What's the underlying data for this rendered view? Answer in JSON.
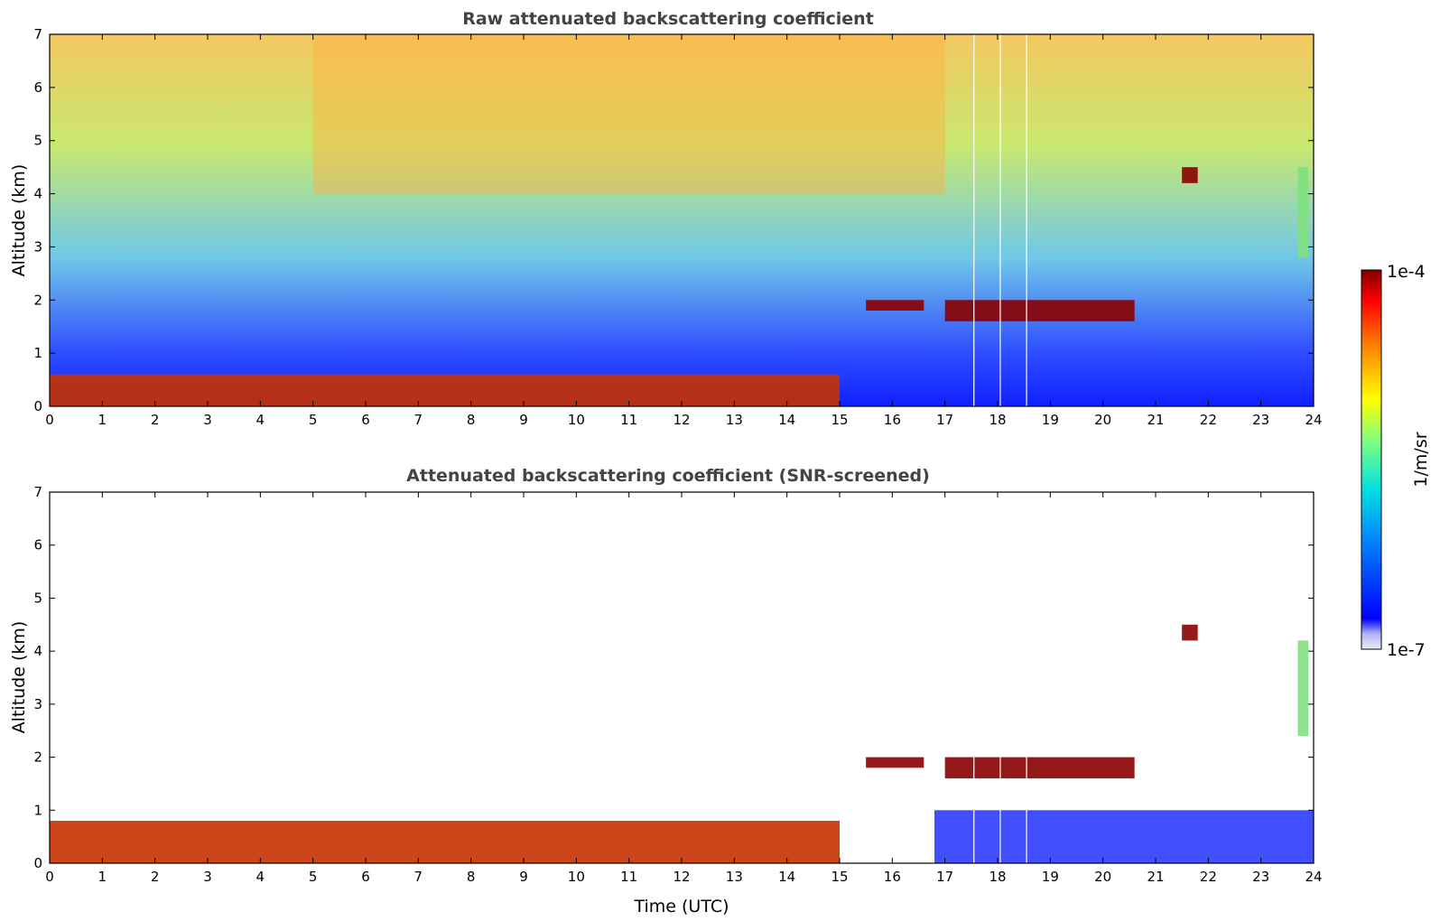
{
  "chart_data": [
    {
      "type": "heatmap",
      "title": "Raw attenuated backscattering coefficient",
      "xlabel": "",
      "ylabel": "Altitude (km)",
      "xlim": [
        0,
        24
      ],
      "ylim": [
        0,
        7
      ],
      "x_ticks": [
        "0",
        "1",
        "2",
        "3",
        "4",
        "5",
        "6",
        "7",
        "8",
        "9",
        "10",
        "11",
        "12",
        "13",
        "14",
        "15",
        "16",
        "17",
        "18",
        "19",
        "20",
        "21",
        "22",
        "23",
        "24"
      ],
      "y_ticks": [
        "0",
        "1",
        "2",
        "3",
        "4",
        "5",
        "6",
        "7"
      ],
      "colormap": "jet",
      "color_scale": "log",
      "features": [
        {
          "kind": "boundary-layer",
          "time_start": 0,
          "time_end": 15,
          "altitude_km": [
            0,
            0.6
          ]
        },
        {
          "kind": "cloud",
          "time_start": 15.5,
          "time_end": 16.6,
          "altitude_km": [
            1.8,
            2.0
          ]
        },
        {
          "kind": "cloud",
          "time_start": 17.0,
          "time_end": 20.6,
          "altitude_km": [
            1.6,
            2.0
          ]
        },
        {
          "kind": "cloud",
          "time_start": 21.5,
          "time_end": 21.8,
          "altitude_km": [
            4.2,
            4.5
          ]
        },
        {
          "kind": "elevated-layer",
          "time_start": 23.7,
          "time_end": 23.9,
          "altitude_km": [
            2.8,
            4.5
          ]
        },
        {
          "kind": "noise-high",
          "time_start": 5,
          "time_end": 17,
          "altitude_km": [
            4,
            7
          ]
        }
      ],
      "missing_profiles_hours": [
        17.55,
        18.05,
        18.55
      ]
    },
    {
      "type": "heatmap",
      "title": "Attenuated backscattering coefficient (SNR-screened)",
      "xlabel": "Time (UTC)",
      "ylabel": "Altitude (km)",
      "xlim": [
        0,
        24
      ],
      "ylim": [
        0,
        7
      ],
      "x_ticks": [
        "0",
        "1",
        "2",
        "3",
        "4",
        "5",
        "6",
        "7",
        "8",
        "9",
        "10",
        "11",
        "12",
        "13",
        "14",
        "15",
        "16",
        "17",
        "18",
        "19",
        "20",
        "21",
        "22",
        "23",
        "24"
      ],
      "y_ticks": [
        "0",
        "1",
        "2",
        "3",
        "4",
        "5",
        "6",
        "7"
      ],
      "colormap": "jet",
      "color_scale": "log",
      "features": [
        {
          "kind": "boundary-layer",
          "time_start": 0,
          "time_end": 15,
          "altitude_km": [
            0,
            0.8
          ]
        },
        {
          "kind": "cloud",
          "time_start": 15.5,
          "time_end": 16.6,
          "altitude_km": [
            1.8,
            2.0
          ]
        },
        {
          "kind": "cloud",
          "time_start": 17.0,
          "time_end": 20.6,
          "altitude_km": [
            1.6,
            2.0
          ]
        },
        {
          "kind": "cloud",
          "time_start": 21.5,
          "time_end": 21.8,
          "altitude_km": [
            4.2,
            4.5
          ]
        },
        {
          "kind": "elevated-layer",
          "time_start": 23.7,
          "time_end": 23.9,
          "altitude_km": [
            2.4,
            4.2
          ]
        }
      ],
      "missing_profiles_hours": [
        17.55,
        18.05,
        18.55
      ]
    }
  ],
  "colorbar": {
    "label": "1/m/sr",
    "min_label": "1e-7",
    "max_label": "1e-4"
  }
}
